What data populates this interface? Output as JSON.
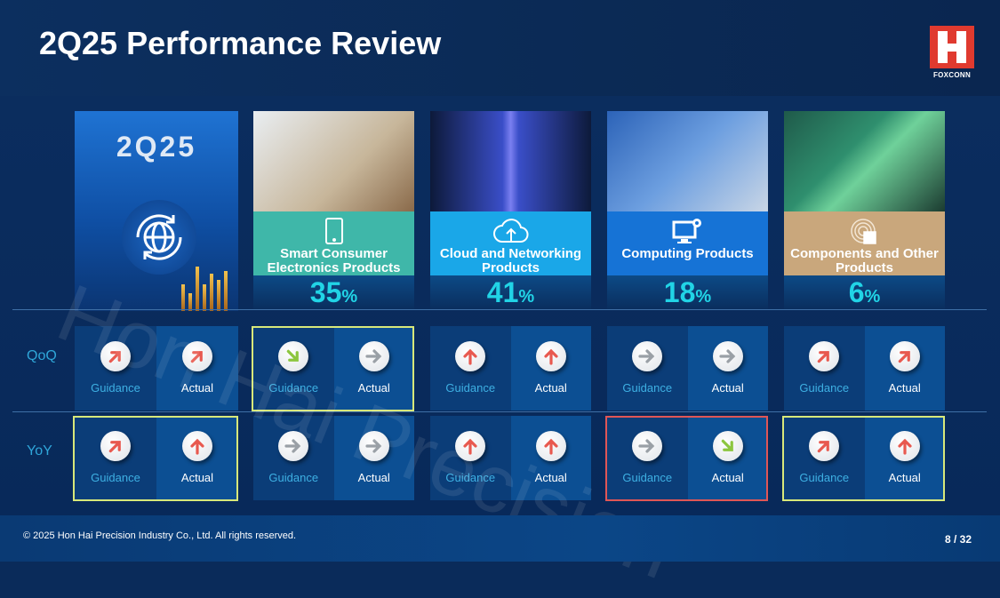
{
  "header": {
    "title": "2Q25 Performance Review",
    "logo_text": "FOXCONN"
  },
  "hero": {
    "label": "2Q25",
    "icon": "globe-refresh-icon"
  },
  "watermark": "Hon Hai Precision",
  "colors": {
    "up": "#e8594f",
    "flat": "#9aa0a6",
    "down": "#8cc63f",
    "highlight_yellow": "#d8e87a",
    "highlight_red": "#e05656",
    "percent": "#21d4e6"
  },
  "row_labels": {
    "qoq": "QoQ",
    "yoy": "YoY"
  },
  "cell_labels": {
    "guidance": "Guidance",
    "actual": "Actual"
  },
  "segments": [
    {
      "name": "Smart Consumer Electronics Products",
      "percent": "35",
      "unit": "%",
      "icon": "smartphone-icon",
      "band": "#3fb7a9",
      "qoq": {
        "guidance": "down-right",
        "actual": "right",
        "highlight": "yellow"
      },
      "yoy": {
        "guidance": "right",
        "actual": "right",
        "highlight": ""
      }
    },
    {
      "name": "Cloud and Networking Products",
      "percent": "41",
      "unit": "%",
      "icon": "cloud-upload-icon",
      "band": "#1aa7e8",
      "qoq": {
        "guidance": "up",
        "actual": "up",
        "highlight": ""
      },
      "yoy": {
        "guidance": "up",
        "actual": "up",
        "highlight": ""
      }
    },
    {
      "name": "Computing Products",
      "percent": "18",
      "unit": "%",
      "icon": "monitor-gear-icon",
      "band": "#1673d6",
      "qoq": {
        "guidance": "right",
        "actual": "right",
        "highlight": ""
      },
      "yoy": {
        "guidance": "right",
        "actual": "down-right",
        "highlight": "red"
      }
    },
    {
      "name": "Components and Other Products",
      "percent": "6",
      "unit": "%",
      "icon": "chip-signal-icon",
      "band": "#c9a77c",
      "qoq": {
        "guidance": "up-right",
        "actual": "up-right",
        "highlight": ""
      },
      "yoy": {
        "guidance": "up-right",
        "actual": "up",
        "highlight": "yellow"
      }
    }
  ],
  "summary": {
    "qoq": {
      "guidance": "up-right",
      "actual": "up-right",
      "highlight": ""
    },
    "yoy": {
      "guidance": "up-right",
      "actual": "up",
      "highlight": "yellow"
    }
  },
  "footer": {
    "copyright": "© 2025  Hon Hai Precision Industry Co., Ltd. All rights reserved.",
    "page": "8 / 32"
  }
}
